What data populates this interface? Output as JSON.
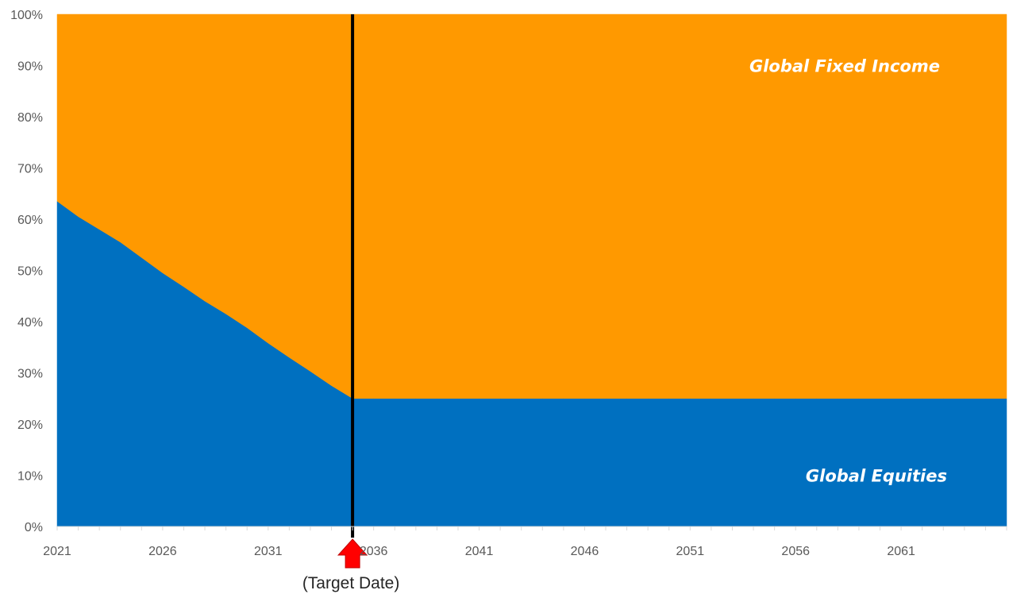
{
  "chart_data": {
    "type": "area",
    "stacked": true,
    "percent": true,
    "x": [
      2021,
      2022,
      2023,
      2024,
      2025,
      2026,
      2027,
      2028,
      2029,
      2030,
      2031,
      2032,
      2033,
      2034,
      2035,
      2036,
      2037,
      2038,
      2039,
      2040,
      2041,
      2042,
      2043,
      2044,
      2045,
      2046,
      2047,
      2048,
      2049,
      2050,
      2051,
      2052,
      2053,
      2054,
      2055,
      2056,
      2057,
      2058,
      2059,
      2060,
      2061,
      2062,
      2063,
      2064,
      2065
    ],
    "series": [
      {
        "name": "Global Equities",
        "color": "#0070c0",
        "values": [
          63.5,
          60.5,
          58,
          55.5,
          52.5,
          49.5,
          46.8,
          44,
          41.5,
          38.8,
          35.8,
          33,
          30.3,
          27.5,
          25,
          25,
          25,
          25,
          25,
          25,
          25,
          25,
          25,
          25,
          25,
          25,
          25,
          25,
          25,
          25,
          25,
          25,
          25,
          25,
          25,
          25,
          25,
          25,
          25,
          25,
          25,
          25,
          25,
          25,
          25
        ]
      },
      {
        "name": "Global Fixed Income",
        "color": "#ff9900",
        "values": [
          36.5,
          39.5,
          42,
          44.5,
          47.5,
          50.5,
          53.2,
          56,
          58.5,
          61.2,
          64.2,
          67,
          69.7,
          72.5,
          75,
          75,
          75,
          75,
          75,
          75,
          75,
          75,
          75,
          75,
          75,
          75,
          75,
          75,
          75,
          75,
          75,
          75,
          75,
          75,
          75,
          75,
          75,
          75,
          75,
          75,
          75,
          75,
          75,
          75,
          75
        ]
      }
    ],
    "x_tick_labels": [
      "2021",
      "2026",
      "2031",
      "2036",
      "2041",
      "2046",
      "2051",
      "2056",
      "2061"
    ],
    "y_tick_labels": [
      "0%",
      "10%",
      "20%",
      "30%",
      "40%",
      "50%",
      "60%",
      "70%",
      "80%",
      "90%",
      "100%"
    ],
    "xlim": [
      2021,
      2065
    ],
    "ylim": [
      0,
      100
    ],
    "grid": false,
    "annotations": {
      "target_year": 2035,
      "target_label": "(Target Date)",
      "line_color": "#000000",
      "arrow_color": "#ff0000"
    },
    "title": "",
    "xlabel": "",
    "ylabel": ""
  }
}
